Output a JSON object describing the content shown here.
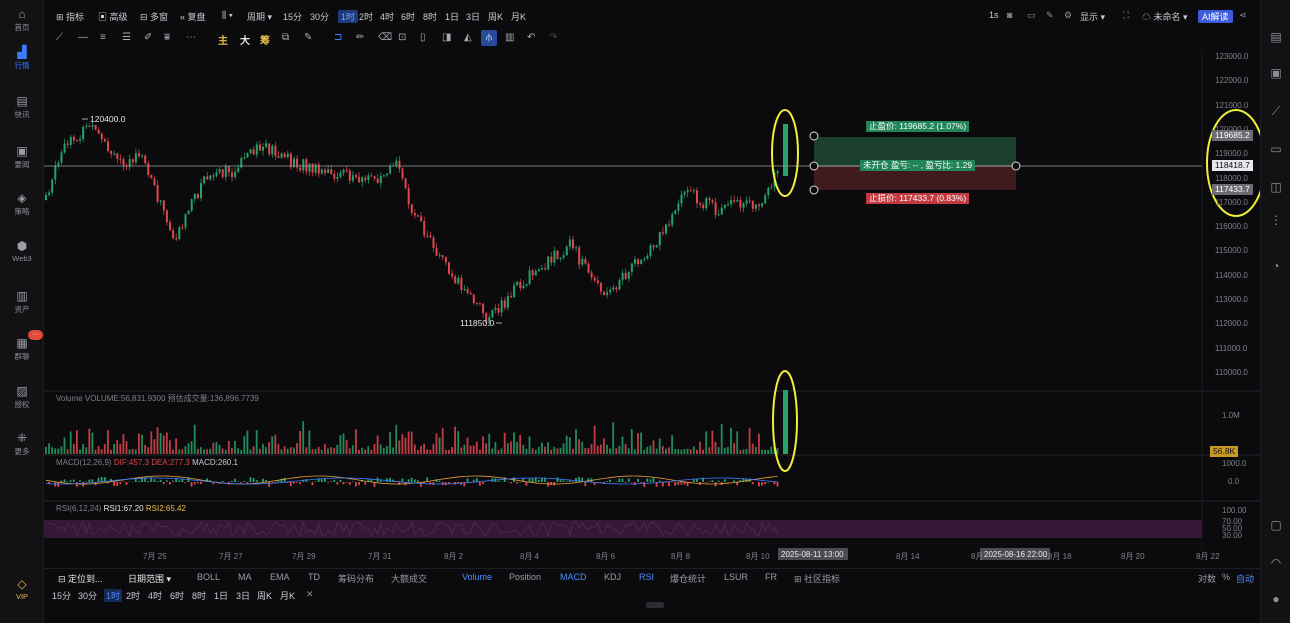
{
  "left_sidebar": {
    "items": [
      {
        "label": "首页",
        "icon": "home-icon"
      },
      {
        "label": "行情",
        "icon": "chart-bar-icon"
      },
      {
        "label": "快讯",
        "icon": "news-icon"
      },
      {
        "label": "要闻",
        "icon": "document-icon"
      },
      {
        "label": "策略",
        "icon": "strategy-icon"
      },
      {
        "label": "Web3",
        "icon": "web3-icon"
      },
      {
        "label": "资产",
        "icon": "wallet-icon"
      },
      {
        "label": "群聊",
        "icon": "chat-icon"
      },
      {
        "label": "授权",
        "icon": "key-icon"
      },
      {
        "label": "更多",
        "icon": "grid-icon"
      }
    ],
    "badge": "···",
    "vip": "VIP"
  },
  "top_bar": {
    "indicators": "指标",
    "advanced": "高级",
    "multi": "多窗",
    "replay": "复盘",
    "period": "周期",
    "timeframes": [
      "15分",
      "30分",
      "1时",
      "2时",
      "4时",
      "6时",
      "8时",
      "1日",
      "3日",
      "周K",
      "月K"
    ],
    "active_tf": "1时",
    "right_1s": "1s",
    "display": "显示",
    "unnamed": "未命名",
    "ai": "AI解读"
  },
  "draw_bar": {
    "main": "主",
    "big": "大",
    "chou": "筹"
  },
  "chart": {
    "price_axis": [
      "123000.0",
      "122000.0",
      "121000.0",
      "120000.0",
      "119000.0",
      "118000.0",
      "117000.0",
      "116000.0",
      "115000.0",
      "114000.0",
      "113000.0",
      "112000.0",
      "111000.0",
      "110000.0"
    ],
    "high_label": "120400.0",
    "low_label": "111850.0",
    "take_profit_label": "止盈价: 119685.2 (1.07%)",
    "position_label": "未开仓 盈亏: -- , 盈亏比: 1.29",
    "stop_loss_label": "止损价: 117433.7 (0.83%)",
    "tag_take_profit": "119685.2",
    "tag_current": "118418.7",
    "tag_stop": "117433.7",
    "volume_label": "Volume  VOLUME:56,831.9300  预估成交量:136,896.7739",
    "volume_axis": "1.0M",
    "volume_tag": "56.8K",
    "macd_label": "MACD(12,26,9)",
    "macd_dif": "DIF:457.3",
    "macd_dea": "DEA:277.3",
    "macd_val": "MACD:260.1",
    "macd_axis": [
      "1000.0",
      "0.0"
    ],
    "rsi_label": "RSI(6,12,24)",
    "rsi1": "RSI1:67.20",
    "rsi2": "RSI2:65.42",
    "rsi_axis": [
      "100.00",
      "70.00",
      "50.00",
      "30.00"
    ],
    "date_labels": [
      "7月 25",
      "7月 27",
      "7月 29",
      "7月 31",
      "8月 2",
      "8月 4",
      "8月 6",
      "8月 8",
      "8月 10",
      "8月 14",
      "8月",
      "8月 18",
      "8月 20",
      "8月 22"
    ],
    "date_tag_1": "2025-08-11 13:00",
    "date_tag_2": "2025-08-16 22:00",
    "colors": {
      "up": "#26a26b",
      "down": "#e0474c",
      "highlight": "#f2ef3a"
    }
  },
  "indicator_bar": {
    "locate": "定位到...",
    "date_range": "日期范围",
    "items": [
      "BOLL",
      "MA",
      "EMA",
      "TD",
      "筹码分布",
      "大额成交"
    ],
    "sub_items": [
      "Volume",
      "Position",
      "MACD",
      "KDJ",
      "RSI",
      "爆仓统计",
      "LSUR",
      "FR"
    ],
    "community": "社区指标",
    "log": "对数",
    "percent": "%",
    "auto": "自动"
  },
  "timeframe_bar": [
    "15分",
    "30分",
    "1时",
    "2时",
    "4时",
    "6时",
    "8时",
    "1日",
    "3日",
    "周K",
    "月K"
  ],
  "timeframe_active": "1时"
}
